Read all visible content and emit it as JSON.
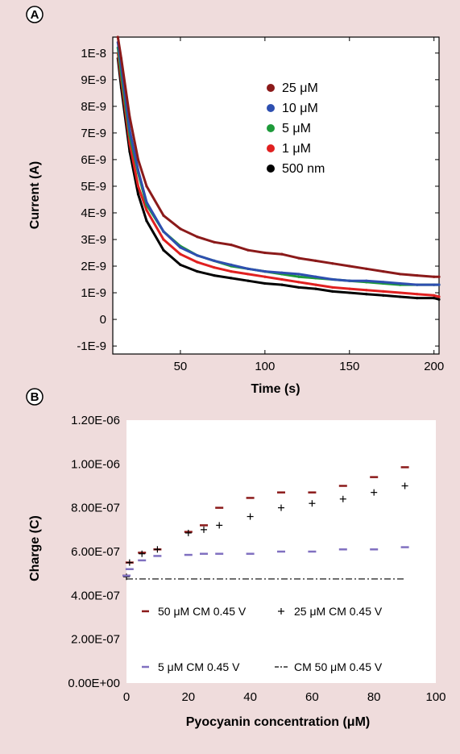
{
  "chart_data": [
    {
      "panel_label": "A",
      "type": "scatter",
      "xlabel": "Time (s)",
      "ylabel": "Current (A)",
      "xlim": [
        10,
        203
      ],
      "ylim": [
        -1.3e-09,
        1.06e-08
      ],
      "x_ticks": [
        50,
        100,
        150,
        200
      ],
      "x_tick_labels": [
        "50",
        "100",
        "150",
        "200"
      ],
      "y_ticks": [
        1e-08,
        9e-09,
        8e-09,
        7e-09,
        6e-09,
        5e-09,
        4e-09,
        3e-09,
        2e-09,
        1e-09,
        0,
        -1e-09
      ],
      "y_tick_labels": [
        "1E-8",
        "9E-9",
        "8E-9",
        "7E-9",
        "6E-9",
        "5E-9",
        "4E-9",
        "3E-9",
        "2E-9",
        "1E-9",
        "0",
        "-1E-9"
      ],
      "legend_position": "top-right",
      "series": [
        {
          "name": "25 μM",
          "color": "#8b1a1a",
          "x": [
            13,
            15,
            20,
            25,
            30,
            40,
            50,
            60,
            70,
            80,
            90,
            100,
            110,
            120,
            130,
            140,
            150,
            160,
            170,
            180,
            190,
            200,
            203
          ],
          "y": [
            1.06e-08,
            9.8e-09,
            7.6e-09,
            6e-09,
            5e-09,
            3.9e-09,
            3.4e-09,
            3.1e-09,
            2.9e-09,
            2.8e-09,
            2.6e-09,
            2.5e-09,
            2.45e-09,
            2.3e-09,
            2.2e-09,
            2.1e-09,
            2e-09,
            1.9e-09,
            1.8e-09,
            1.7e-09,
            1.65e-09,
            1.6e-09,
            1.6e-09
          ]
        },
        {
          "name": "10 μM",
          "color": "#2e4fb0",
          "x": [
            13,
            15,
            20,
            25,
            30,
            40,
            50,
            60,
            70,
            80,
            90,
            100,
            110,
            120,
            130,
            140,
            150,
            160,
            170,
            180,
            190,
            200,
            203
          ],
          "y": [
            1.04e-08,
            9.5e-09,
            7.1e-09,
            5.6e-09,
            4.4e-09,
            3.3e-09,
            2.7e-09,
            2.4e-09,
            2.2e-09,
            2.05e-09,
            1.9e-09,
            1.8e-09,
            1.75e-09,
            1.7e-09,
            1.6e-09,
            1.5e-09,
            1.45e-09,
            1.45e-09,
            1.4e-09,
            1.35e-09,
            1.3e-09,
            1.3e-09,
            1.3e-09
          ]
        },
        {
          "name": "5 μM",
          "color": "#1e9a3a",
          "x": [
            13,
            15,
            20,
            25,
            30,
            40,
            50,
            60,
            70,
            80,
            90,
            100,
            110,
            120,
            130,
            140,
            150,
            160,
            170,
            180,
            190,
            200,
            203
          ],
          "y": [
            1.02e-08,
            9.2e-09,
            6.9e-09,
            5.5e-09,
            4.3e-09,
            3.3e-09,
            2.75e-09,
            2.4e-09,
            2.2e-09,
            2e-09,
            1.9e-09,
            1.8e-09,
            1.7e-09,
            1.6e-09,
            1.55e-09,
            1.5e-09,
            1.45e-09,
            1.4e-09,
            1.35e-09,
            1.3e-09,
            1.3e-09,
            1.3e-09,
            1.3e-09
          ]
        },
        {
          "name": "1 μM",
          "color": "#e02020",
          "x": [
            13,
            15,
            20,
            25,
            30,
            40,
            50,
            60,
            70,
            80,
            90,
            100,
            110,
            120,
            130,
            140,
            150,
            160,
            170,
            180,
            190,
            200,
            203
          ],
          "y": [
            1e-08,
            9e-09,
            6.6e-09,
            5e-09,
            4.1e-09,
            3e-09,
            2.45e-09,
            2.15e-09,
            1.95e-09,
            1.8e-09,
            1.7e-09,
            1.6e-09,
            1.5e-09,
            1.4e-09,
            1.3e-09,
            1.2e-09,
            1.15e-09,
            1.1e-09,
            1.05e-09,
            1e-09,
            9.5e-10,
            9e-10,
            8.5e-10
          ]
        },
        {
          "name": "500 nm",
          "color": "#000000",
          "x": [
            13,
            15,
            20,
            25,
            30,
            40,
            50,
            60,
            70,
            80,
            90,
            100,
            110,
            120,
            130,
            140,
            150,
            160,
            170,
            180,
            190,
            200,
            203
          ],
          "y": [
            9.8e-09,
            8.7e-09,
            6.3e-09,
            4.7e-09,
            3.7e-09,
            2.6e-09,
            2.05e-09,
            1.8e-09,
            1.65e-09,
            1.55e-09,
            1.45e-09,
            1.35e-09,
            1.3e-09,
            1.2e-09,
            1.15e-09,
            1.05e-09,
            1e-09,
            9.5e-10,
            9e-10,
            8.5e-10,
            8e-10,
            8e-10,
            7.5e-10
          ]
        }
      ]
    },
    {
      "panel_label": "B",
      "type": "scatter",
      "xlabel": "Pyocyanin concentration (μM)",
      "ylabel": "Charge (C)",
      "xlim": [
        0,
        100
      ],
      "ylim": [
        0,
        1.2e-06
      ],
      "grid": false,
      "x_ticks": [
        0,
        20,
        40,
        60,
        80,
        100
      ],
      "x_tick_labels": [
        "0",
        "20",
        "40",
        "60",
        "80",
        "100"
      ],
      "y_ticks": [
        1.2e-06,
        1e-06,
        8e-07,
        6e-07,
        4e-07,
        2e-07,
        0
      ],
      "y_tick_labels": [
        "1.20E-06",
        "1.00E-06",
        "8.00E-07",
        "6.00E-07",
        "4.00E-07",
        "2.00E-07",
        "0.00E+00"
      ],
      "legend_position": "bottom",
      "series": [
        {
          "name": "50 μM CM 0.45 V",
          "color": "#8b1a1a",
          "marker": "dash",
          "x": [
            0,
            1,
            5,
            10,
            20,
            25,
            30,
            40,
            50,
            60,
            70,
            80,
            90
          ],
          "y": [
            4.9e-07,
            5.5e-07,
            5.95e-07,
            6.1e-07,
            6.9e-07,
            7.2e-07,
            8e-07,
            8.45e-07,
            8.7e-07,
            8.7e-07,
            9e-07,
            9.4e-07,
            9.85e-07
          ]
        },
        {
          "name": "25 μM CM 0.45 V",
          "color": "#000000",
          "marker": "plus",
          "x": [
            0,
            1,
            5,
            10,
            20,
            25,
            30,
            40,
            50,
            60,
            70,
            80,
            90
          ],
          "y": [
            4.85e-07,
            5.5e-07,
            5.9e-07,
            6.1e-07,
            6.85e-07,
            7e-07,
            7.2e-07,
            7.6e-07,
            8e-07,
            8.2e-07,
            8.4e-07,
            8.7e-07,
            9e-07
          ]
        },
        {
          "name": "5 μM CM 0.45 V",
          "color": "#8070c0",
          "marker": "dash",
          "x": [
            0,
            1,
            5,
            10,
            20,
            25,
            30,
            40,
            50,
            60,
            70,
            80,
            90
          ],
          "y": [
            4.9e-07,
            5.2e-07,
            5.6e-07,
            5.8e-07,
            5.85e-07,
            5.9e-07,
            5.9e-07,
            5.9e-07,
            6e-07,
            6e-07,
            6.1e-07,
            6.1e-07,
            6.2e-07
          ]
        },
        {
          "name": "CM 50 μM 0.45 V",
          "color": "#000000",
          "marker": "dashdot-line",
          "x": [
            0,
            90
          ],
          "y": [
            4.75e-07,
            4.75e-07
          ]
        }
      ]
    }
  ]
}
